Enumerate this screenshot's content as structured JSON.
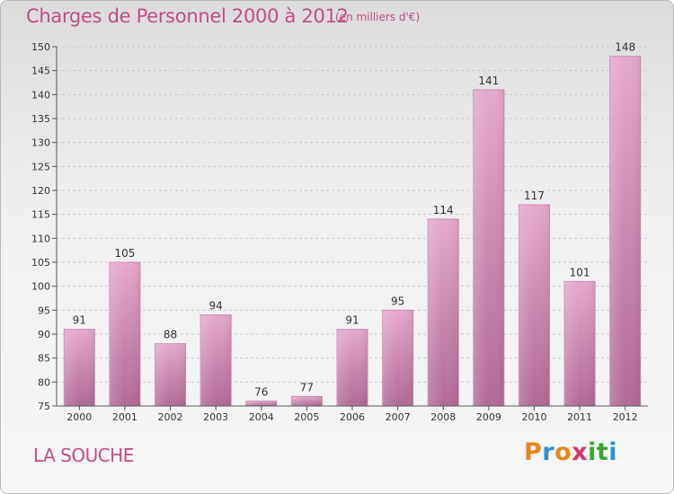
{
  "chart_data": {
    "type": "bar",
    "title": "Charges de Personnel 2000 à 2012",
    "subtitle": "(en milliers d'€)",
    "categories": [
      "2000",
      "2001",
      "2002",
      "2003",
      "2004",
      "2005",
      "2006",
      "2007",
      "2008",
      "2009",
      "2010",
      "2011",
      "2012"
    ],
    "values": [
      91,
      105,
      88,
      94,
      76,
      77,
      91,
      95,
      114,
      141,
      117,
      101,
      148
    ],
    "ylim": [
      75,
      150
    ],
    "yticks": [
      75,
      80,
      85,
      90,
      95,
      100,
      105,
      110,
      115,
      120,
      125,
      130,
      135,
      140,
      145,
      150
    ],
    "grid": true,
    "bar_color": "#c77aa8",
    "xlabel": "",
    "ylabel": ""
  },
  "footer": {
    "commune": "LA SOUCHE",
    "brand": "Proxiti",
    "brand_colors": [
      "#e8871e",
      "#2f8fd1",
      "#e8871e",
      "#d8326e",
      "#3aa635",
      "#3aa635",
      "#2f8fd1"
    ]
  },
  "colors": {
    "accent": "#c34d87",
    "grid": "#c8c8c8",
    "axis": "#555555"
  }
}
